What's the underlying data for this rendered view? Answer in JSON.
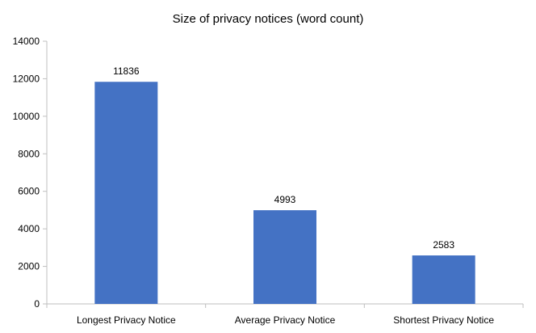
{
  "chart_data": {
    "type": "bar",
    "title": "Size of privacy notices (word count)",
    "categories": [
      "Longest Privacy Notice",
      "Average Privacy Notice",
      "Shortest Privacy Notice"
    ],
    "values": [
      11836,
      4993,
      2583
    ],
    "data_labels": [
      "11836",
      "4993",
      "2583"
    ],
    "yticks": [
      "0",
      "2000",
      "4000",
      "6000",
      "8000",
      "10000",
      "12000",
      "14000"
    ],
    "ylim": [
      0,
      14000
    ],
    "grid": false,
    "legend": "none",
    "bar_color": "#4472C4",
    "axis_color": "#BFBFBF"
  }
}
